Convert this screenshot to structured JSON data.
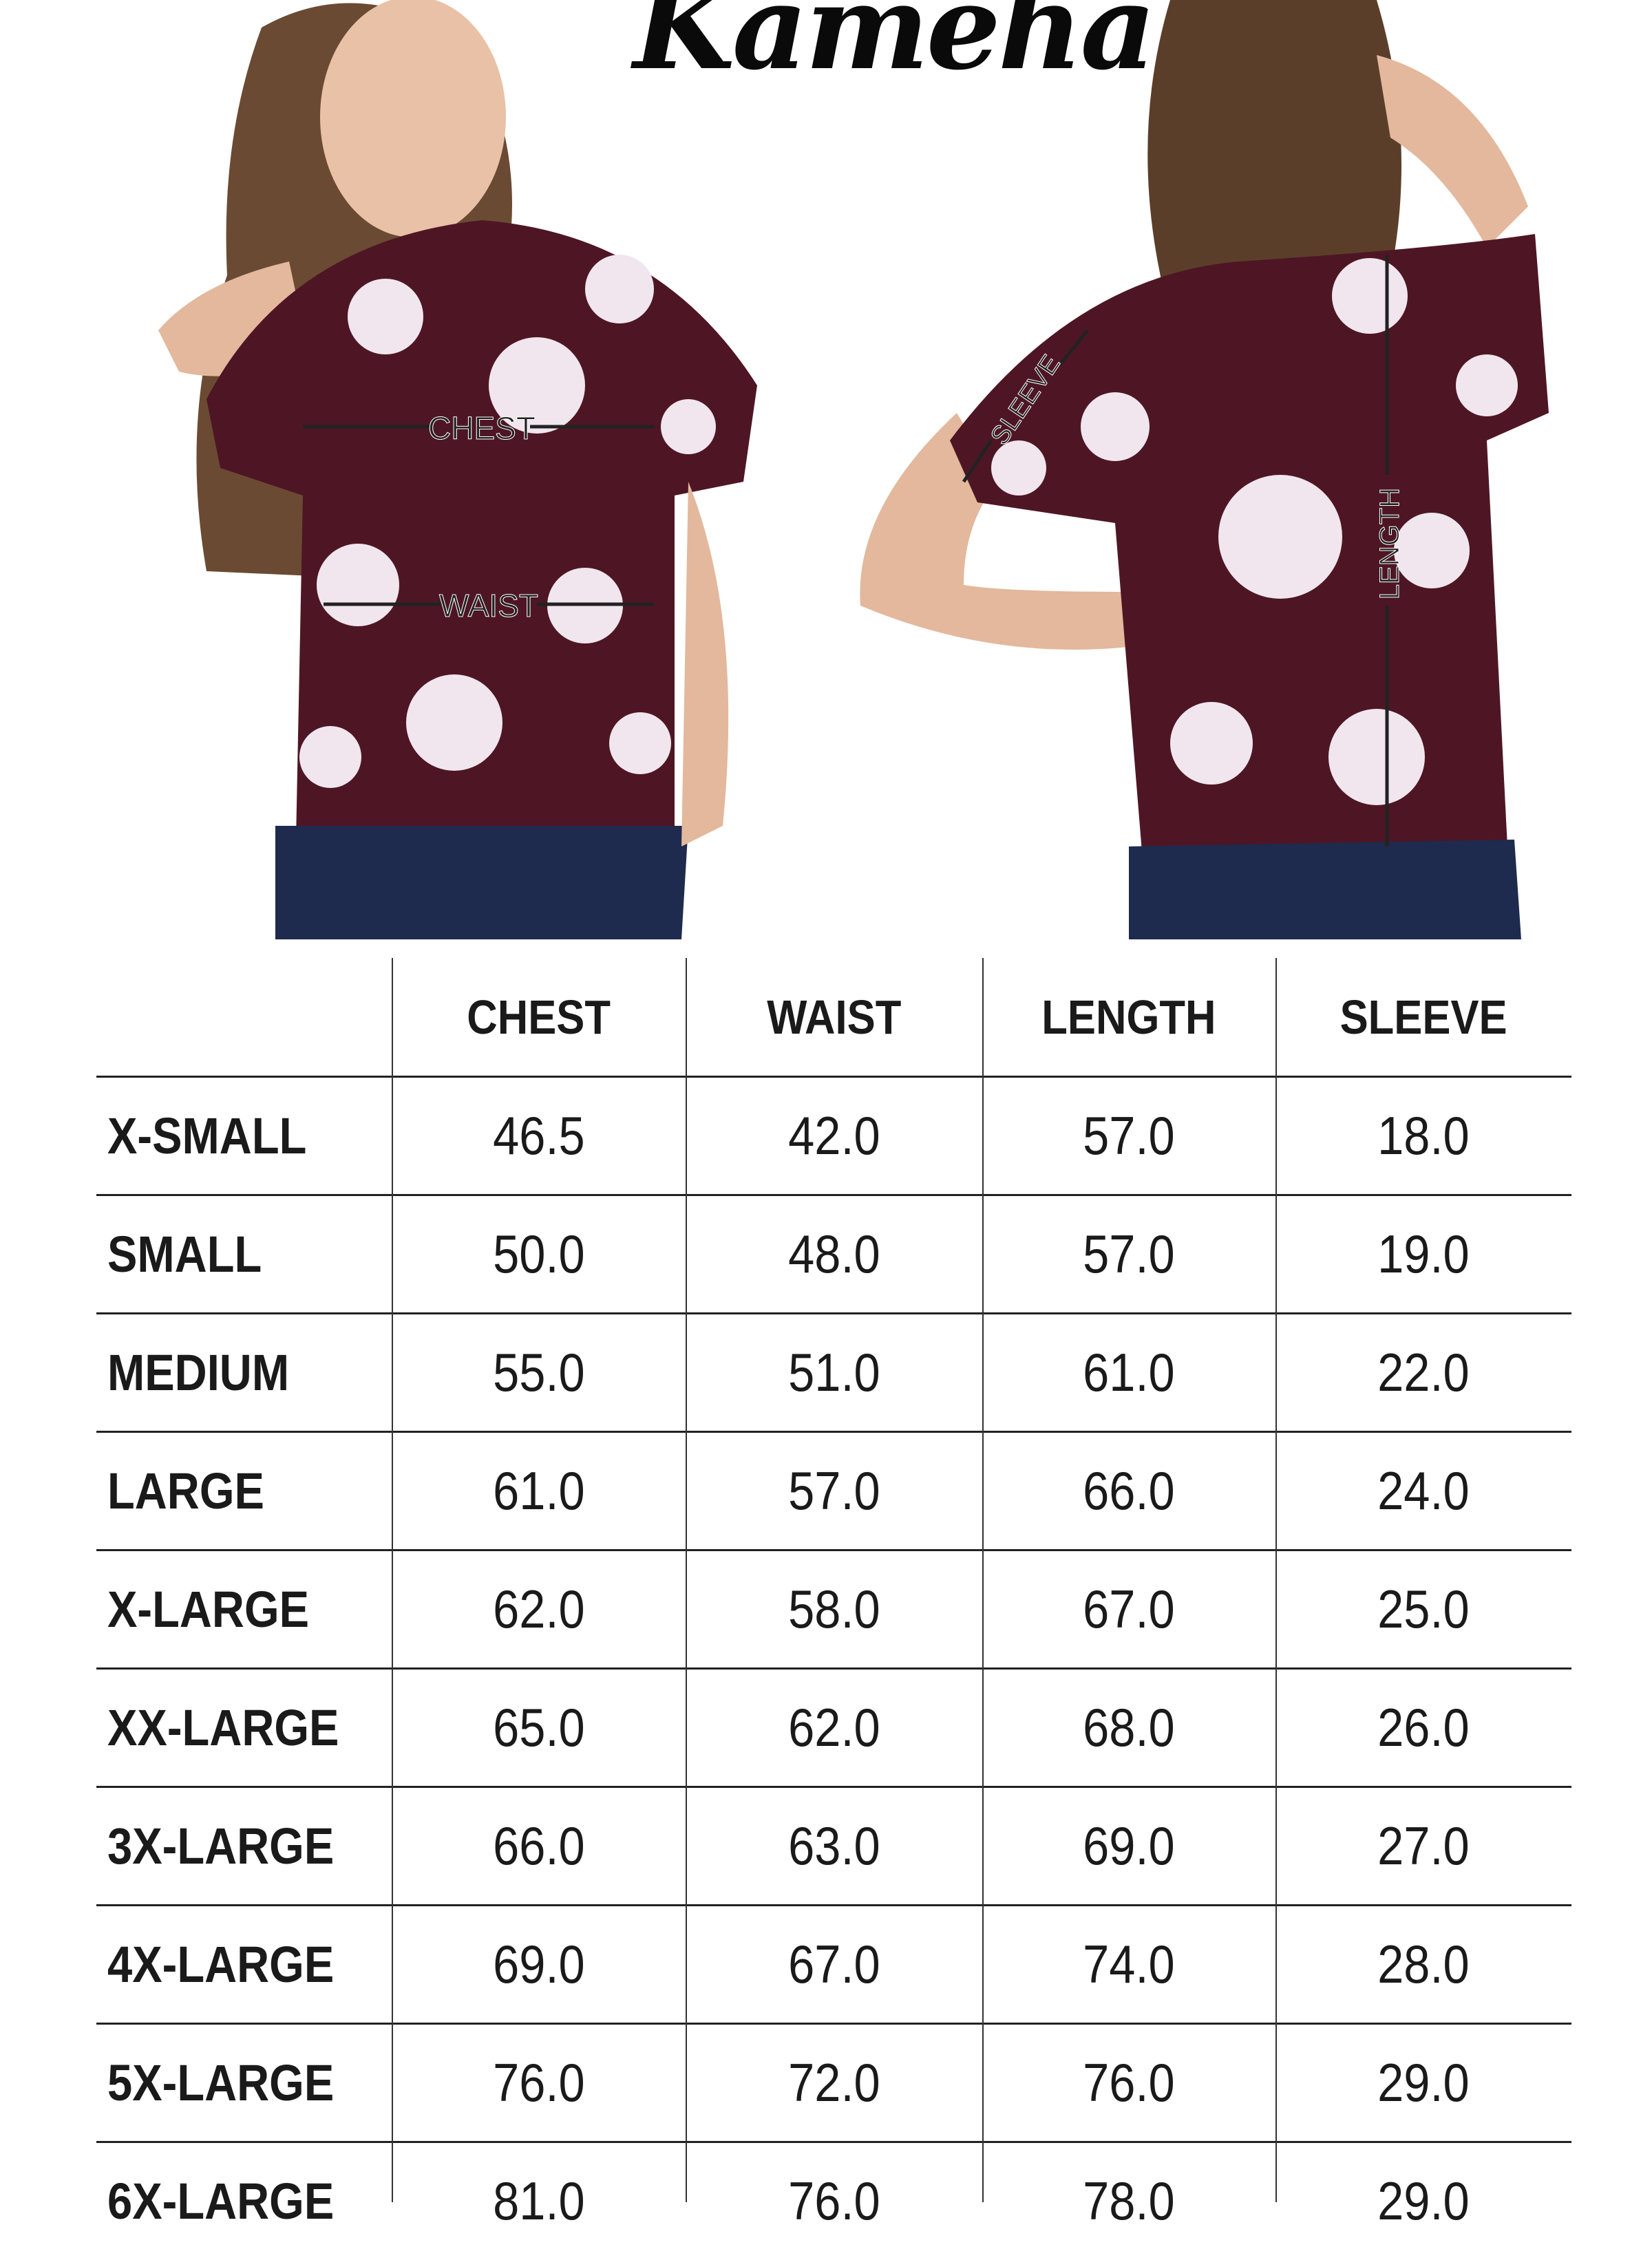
{
  "brand": {
    "logo_text": "Kameha"
  },
  "photo_labels": {
    "chest": "CHEST",
    "waist": "WAIST",
    "sleeve": "SLEEVE",
    "length": "LENGTH"
  },
  "colors": {
    "shirt": "#4e1624",
    "flowers": "#f1e6ee",
    "jeans": "#1e2a4e",
    "text": "#1a1a1a"
  },
  "table": {
    "columns": [
      "",
      "CHEST",
      "WAIST",
      "LENGTH",
      "SLEEVE"
    ],
    "rows": [
      {
        "size": "X-SMALL",
        "values": [
          "46.5",
          "42.0",
          "57.0",
          "18.0"
        ]
      },
      {
        "size": "SMALL",
        "values": [
          "50.0",
          "48.0",
          "57.0",
          "19.0"
        ]
      },
      {
        "size": "MEDIUM",
        "values": [
          "55.0",
          "51.0",
          "61.0",
          "22.0"
        ]
      },
      {
        "size": "LARGE",
        "values": [
          "61.0",
          "57.0",
          "66.0",
          "24.0"
        ]
      },
      {
        "size": "X-LARGE",
        "values": [
          "62.0",
          "58.0",
          "67.0",
          "25.0"
        ]
      },
      {
        "size": "XX-LARGE",
        "values": [
          "65.0",
          "62.0",
          "68.0",
          "26.0"
        ]
      },
      {
        "size": "3X-LARGE",
        "values": [
          "66.0",
          "63.0",
          "69.0",
          "27.0"
        ]
      },
      {
        "size": "4X-LARGE",
        "values": [
          "69.0",
          "67.0",
          "74.0",
          "28.0"
        ]
      },
      {
        "size": "5X-LARGE",
        "values": [
          "76.0",
          "72.0",
          "76.0",
          "29.0"
        ]
      },
      {
        "size": "6X-LARGE",
        "values": [
          "81.0",
          "76.0",
          "78.0",
          "29.0"
        ]
      }
    ]
  }
}
